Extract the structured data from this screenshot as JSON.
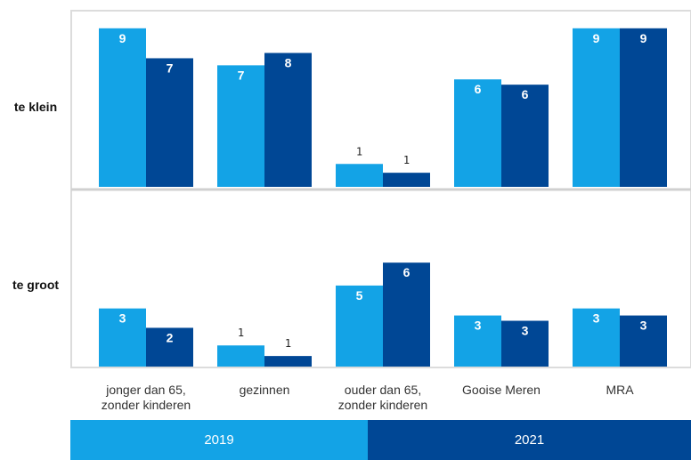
{
  "chart_data": [
    {
      "type": "bar",
      "title": "te klein",
      "categories": [
        "jonger dan 65, zonder kinderen",
        "gezinnen",
        "ouder dan 65, zonder kinderen",
        "Gooise Meren",
        "MRA"
      ],
      "series": [
        {
          "name": "2019",
          "color": "#13a3e6",
          "values": [
            9.0,
            6.9,
            1.3,
            6.1,
            9.0
          ],
          "value_labels": [
            "9",
            "7",
            "1",
            "6",
            "9"
          ]
        },
        {
          "name": "2021",
          "color": "#004795",
          "values": [
            7.3,
            7.6,
            0.8,
            5.8,
            9.0
          ],
          "value_labels": [
            "7",
            "8",
            "1",
            "6",
            "9"
          ]
        }
      ]
    },
    {
      "type": "bar",
      "title": "te groot",
      "categories": [
        "jonger dan 65, zonder kinderen",
        "gezinnen",
        "ouder dan 65, zonder kinderen",
        "Gooise Meren",
        "MRA"
      ],
      "series": [
        {
          "name": "2019",
          "color": "#13a3e6",
          "values": [
            3.3,
            1.2,
            4.6,
            2.9,
            3.3
          ],
          "value_labels": [
            "3",
            "1",
            "5",
            "3",
            "3"
          ]
        },
        {
          "name": "2021",
          "color": "#004795",
          "values": [
            2.2,
            0.6,
            5.9,
            2.6,
            2.9
          ],
          "value_labels": [
            "2",
            "1",
            "6",
            "3",
            "3"
          ]
        }
      ]
    }
  ]
}
